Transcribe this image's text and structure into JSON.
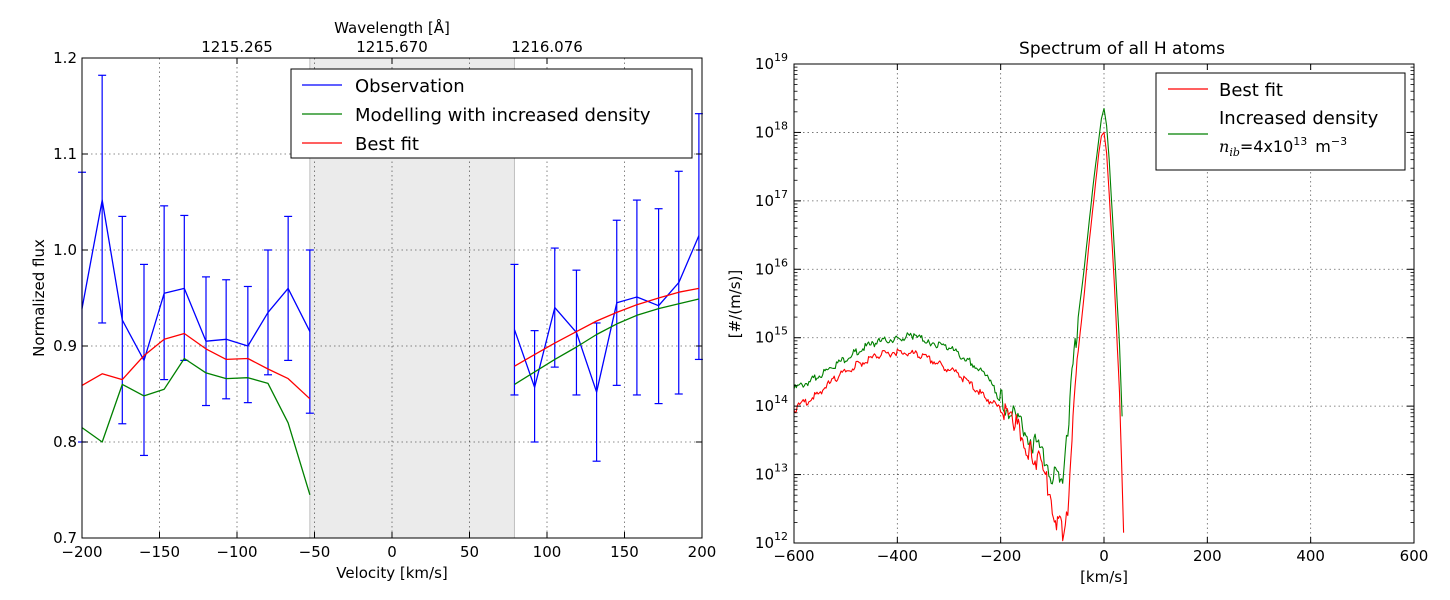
{
  "chart_data": [
    {
      "type": "line",
      "xlabel": "Velocity [km/s]",
      "ylabel": "Normalized flux",
      "xlim": [
        -200,
        200
      ],
      "ylim": [
        0.7,
        1.2
      ],
      "x_ticks": [
        -200,
        -150,
        -100,
        -50,
        0,
        50,
        100,
        150,
        200
      ],
      "y_ticks": [
        0.7,
        0.8,
        0.9,
        1.0,
        1.1,
        1.2
      ],
      "x_tick_labels": [
        "−200",
        "−150",
        "−100",
        "−50",
        "0",
        "50",
        "100",
        "150",
        "200"
      ],
      "y_tick_labels": [
        "0.7",
        "0.8",
        "0.9",
        "1.0",
        "1.1",
        "1.2"
      ],
      "grid": true,
      "shaded_region": [
        -53,
        79
      ],
      "top_axis": {
        "label": "Wavelength [Å]",
        "ticks": [
          -100,
          0,
          100
        ],
        "tick_labels": [
          "1215.265",
          "1215.670",
          "1216.076"
        ]
      },
      "legend": {
        "position": "top-right",
        "entries": [
          "Observation",
          "Modelling with increased density",
          "Best fit"
        ]
      },
      "series": [
        {
          "name": "Observation",
          "color": "#0000ff",
          "segments": [
            {
              "x": [
                -200,
                -187,
                -174,
                -160,
                -147,
                -134,
                -120,
                -107,
                -93,
                -80,
                -67,
                -53
              ],
              "y": [
                0.939,
                1.052,
                0.927,
                0.885,
                0.955,
                0.96,
                0.905,
                0.907,
                0.9,
                0.935,
                0.96,
                0.915
              ]
            },
            {
              "x": [
                79,
                92,
                105,
                119,
                132,
                145,
                158,
                172,
                185,
                198
              ],
              "y": [
                0.917,
                0.857,
                0.94,
                0.914,
                0.852,
                0.945,
                0.951,
                0.942,
                0.966,
                1.015
              ]
            }
          ],
          "error_bars": [
            {
              "x": -200,
              "low": 0.8,
              "high": 1.081
            },
            {
              "x": -187,
              "low": 0.924,
              "high": 1.182
            },
            {
              "x": -174,
              "low": 0.819,
              "high": 1.035
            },
            {
              "x": -160,
              "low": 0.786,
              "high": 0.985
            },
            {
              "x": -147,
              "low": 0.865,
              "high": 1.046
            },
            {
              "x": -134,
              "low": 0.885,
              "high": 1.036
            },
            {
              "x": -120,
              "low": 0.838,
              "high": 0.972
            },
            {
              "x": -107,
              "low": 0.845,
              "high": 0.969
            },
            {
              "x": -93,
              "low": 0.841,
              "high": 0.962
            },
            {
              "x": -80,
              "low": 0.87,
              "high": 1.0
            },
            {
              "x": -67,
              "low": 0.885,
              "high": 1.035
            },
            {
              "x": -53,
              "low": 0.83,
              "high": 1.0
            },
            {
              "x": 79,
              "low": 0.849,
              "high": 0.985
            },
            {
              "x": 92,
              "low": 0.8,
              "high": 0.916
            },
            {
              "x": 105,
              "low": 0.878,
              "high": 1.002
            },
            {
              "x": 119,
              "low": 0.849,
              "high": 0.979
            },
            {
              "x": 132,
              "low": 0.78,
              "high": 0.924
            },
            {
              "x": 145,
              "low": 0.859,
              "high": 1.031
            },
            {
              "x": 158,
              "low": 0.849,
              "high": 1.052
            },
            {
              "x": 172,
              "low": 0.84,
              "high": 1.043
            },
            {
              "x": 185,
              "low": 0.85,
              "high": 1.082
            },
            {
              "x": 198,
              "low": 0.886,
              "high": 1.142
            }
          ]
        },
        {
          "name": "Modelling with increased density",
          "color": "#008000",
          "segments": [
            {
              "x": [
                -200,
                -187,
                -174,
                -160,
                -147,
                -134,
                -120,
                -107,
                -93,
                -80,
                -67,
                -53
              ],
              "y": [
                0.815,
                0.8,
                0.86,
                0.848,
                0.855,
                0.887,
                0.872,
                0.866,
                0.867,
                0.861,
                0.82,
                0.745
              ]
            },
            {
              "x": [
                79,
                92,
                105,
                119,
                132,
                145,
                158,
                172,
                185,
                198
              ],
              "y": [
                0.86,
                0.873,
                0.886,
                0.899,
                0.912,
                0.923,
                0.932,
                0.939,
                0.944,
                0.949
              ]
            }
          ]
        },
        {
          "name": "Best fit",
          "color": "#ff0000",
          "segments": [
            {
              "x": [
                -200,
                -187,
                -174,
                -160,
                -147,
                -134,
                -120,
                -107,
                -93,
                -80,
                -67,
                -53
              ],
              "y": [
                0.859,
                0.871,
                0.865,
                0.89,
                0.907,
                0.913,
                0.897,
                0.886,
                0.887,
                0.876,
                0.866,
                0.845
              ]
            },
            {
              "x": [
                79,
                92,
                105,
                119,
                132,
                145,
                158,
                172,
                185,
                198
              ],
              "y": [
                0.879,
                0.891,
                0.903,
                0.915,
                0.926,
                0.935,
                0.943,
                0.95,
                0.956,
                0.96
              ]
            }
          ]
        }
      ]
    },
    {
      "type": "line",
      "title": "Spectrum of all H atoms",
      "xlabel": "[km/s]",
      "ylabel": "[#/(m/s)]",
      "xlim": [
        -600,
        600
      ],
      "y_scale": "log",
      "ylim_exponents": [
        12,
        19
      ],
      "x_ticks": [
        -600,
        -400,
        -200,
        0,
        200,
        400,
        600
      ],
      "x_tick_labels": [
        "−600",
        "−400",
        "−200",
        "0",
        "200",
        "400",
        "600"
      ],
      "y_tick_labels": [
        {
          "base": "10",
          "exp": "12"
        },
        {
          "base": "10",
          "exp": "13"
        },
        {
          "base": "10",
          "exp": "14"
        },
        {
          "base": "10",
          "exp": "15"
        },
        {
          "base": "10",
          "exp": "16"
        },
        {
          "base": "10",
          "exp": "17"
        },
        {
          "base": "10",
          "exp": "18"
        },
        {
          "base": "10",
          "exp": "19"
        }
      ],
      "grid": true,
      "legend": {
        "position": "top-right",
        "entries": [
          "Best fit",
          "Increased density"
        ],
        "annotation": {
          "var": "n",
          "sub": "ib",
          "eq": "=4x10",
          "exp": "13",
          "unit": "m",
          "unit_exp": "−3"
        }
      },
      "series": [
        {
          "name": "Best fit",
          "color": "#ff0000",
          "x": [
            -600,
            -560,
            -520,
            -480,
            -440,
            -400,
            -360,
            -320,
            -280,
            -240,
            -200,
            -170,
            -140,
            -120,
            -100,
            -90,
            -80,
            -75,
            -70,
            -60,
            -50,
            -40,
            -30,
            -20,
            -10,
            -5,
            0,
            5,
            10,
            20,
            30,
            38
          ],
          "y_log10": [
            13.95,
            14.15,
            14.4,
            14.6,
            14.73,
            14.8,
            14.75,
            14.62,
            14.45,
            14.2,
            13.95,
            13.7,
            13.3,
            13.1,
            12.6,
            12.3,
            12.15,
            12.2,
            12.5,
            13.8,
            14.8,
            15.5,
            16.3,
            17.0,
            17.7,
            17.95,
            18.0,
            17.7,
            17.1,
            15.8,
            14.2,
            12.15
          ]
        },
        {
          "name": "Increased density",
          "color": "#008000",
          "x": [
            -600,
            -560,
            -520,
            -480,
            -440,
            -400,
            -370,
            -340,
            -300,
            -260,
            -230,
            -200,
            -180,
            -160,
            -140,
            -120,
            -100,
            -90,
            -80,
            -75,
            -70,
            -60,
            -50,
            -40,
            -30,
            -20,
            -10,
            -5,
            0,
            5,
            10,
            20,
            30,
            35
          ],
          "y_log10": [
            14.25,
            14.4,
            14.6,
            14.8,
            14.93,
            15.0,
            15.02,
            14.95,
            14.85,
            14.65,
            14.45,
            14.1,
            13.9,
            13.7,
            13.5,
            13.3,
            13.0,
            12.9,
            12.95,
            13.3,
            13.6,
            14.6,
            15.3,
            15.9,
            16.6,
            17.3,
            17.9,
            18.2,
            18.35,
            18.1,
            17.6,
            16.3,
            14.9,
            13.85
          ]
        }
      ]
    }
  ]
}
